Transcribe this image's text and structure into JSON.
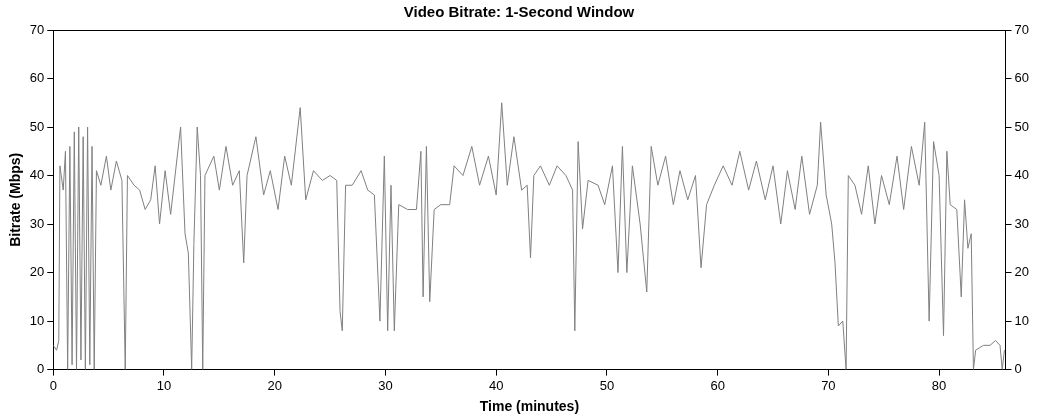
{
  "chart_data": {
    "type": "line",
    "title": "Video Bitrate: 1-Second Window",
    "xlabel": "Time (minutes)",
    "ylabel": "Bitrate (Mbps)",
    "xlim": [
      0,
      86
    ],
    "xticks": [
      0,
      10,
      20,
      30,
      40,
      50,
      60,
      70,
      80
    ],
    "ylim": [
      0,
      70
    ],
    "yticks": [
      0,
      10,
      20,
      30,
      40,
      50,
      60,
      70
    ],
    "y2lim": [
      0,
      70
    ],
    "y2ticks": [
      0,
      10,
      20,
      30,
      40,
      50,
      60,
      70
    ],
    "grid": false,
    "legend": false,
    "marker": "none",
    "line_style": "solid",
    "series": [
      {
        "color": "#808080",
        "x": [
          0,
          0.3,
          0.5,
          0.6,
          0.9,
          1.1,
          1.3,
          1.5,
          1.7,
          1.9,
          2.1,
          2.3,
          2.5,
          2.7,
          2.9,
          3.1,
          3.3,
          3.5,
          3.7,
          3.9,
          4.3,
          4.8,
          5.2,
          5.7,
          6.2,
          6.5,
          6.7,
          7.3,
          7.8,
          8.3,
          8.8,
          9.2,
          9.6,
          10.1,
          10.6,
          11.2,
          11.5,
          11.9,
          12.2,
          12.5,
          12.7,
          13,
          13.3,
          13.5,
          13.7,
          14.5,
          15,
          15.6,
          16.2,
          16.8,
          17.2,
          17.5,
          18.3,
          19,
          19.6,
          20.3,
          20.9,
          21.5,
          22.3,
          22.8,
          23.5,
          24.3,
          25,
          25.6,
          25.9,
          26.1,
          26.4,
          27,
          27.8,
          28.4,
          29,
          29.5,
          29.9,
          30.2,
          30.5,
          30.8,
          31.2,
          32,
          32.8,
          33.2,
          33.4,
          33.7,
          34,
          34.4,
          35,
          35.8,
          36.2,
          37,
          37.8,
          38.5,
          39.3,
          40,
          40.5,
          41,
          41.6,
          42.3,
          42.8,
          43.1,
          43.4,
          44,
          44.8,
          45.5,
          46.3,
          46.9,
          47.1,
          47.4,
          47.8,
          48.3,
          49.2,
          49.8,
          50.5,
          51,
          51.4,
          51.8,
          52.3,
          53,
          53.6,
          54,
          54.6,
          55.3,
          56,
          56.6,
          57.3,
          58,
          58.5,
          59,
          59.7,
          60.5,
          61.3,
          62,
          62.8,
          63.5,
          64.3,
          65,
          65.7,
          66.3,
          67,
          67.6,
          68.3,
          69,
          69.3,
          69.8,
          70.3,
          70.6,
          70.9,
          71.3,
          71.6,
          71.8,
          72.4,
          73,
          73.6,
          74.2,
          74.8,
          75.5,
          76.2,
          76.8,
          77.5,
          78.2,
          78.7,
          79.1,
          79.5,
          80,
          80.4,
          80.7,
          81,
          81.6,
          82,
          82.3,
          82.6,
          82.9,
          83.1,
          83.3,
          84,
          84.6,
          85.1,
          85.5,
          85.7,
          85.9
        ],
        "values": [
          5,
          4,
          6,
          42,
          37,
          45,
          0,
          46,
          1,
          49,
          0,
          50,
          2,
          48,
          0,
          50,
          1,
          46,
          0,
          41,
          38,
          44,
          37,
          43,
          39,
          0,
          40,
          38,
          37,
          33,
          35,
          42,
          30,
          41,
          32,
          44,
          50,
          28,
          24,
          0,
          26,
          50,
          40,
          0,
          40,
          44,
          37,
          46,
          38,
          41,
          22,
          40,
          48,
          36,
          41,
          33,
          44,
          38,
          54,
          35,
          41,
          39,
          40,
          39,
          12,
          8,
          38,
          38,
          41,
          37,
          36,
          10,
          44,
          8,
          38,
          8,
          34,
          33,
          33,
          45,
          15,
          46,
          14,
          33,
          34,
          34,
          42,
          40,
          46,
          38,
          44,
          36,
          55,
          38,
          48,
          37,
          38,
          23,
          40,
          42,
          38,
          42,
          40,
          37,
          8,
          47,
          29,
          39,
          38,
          34,
          42,
          20,
          46,
          20,
          42,
          30,
          16,
          46,
          38,
          44,
          34,
          41,
          35,
          40,
          21,
          34,
          38,
          42,
          38,
          45,
          37,
          43,
          35,
          42,
          30,
          41,
          33,
          44,
          32,
          38,
          51,
          36,
          30,
          22,
          9,
          10,
          0,
          40,
          38,
          32,
          42,
          30,
          40,
          34,
          44,
          33,
          46,
          38,
          51,
          10,
          47,
          40,
          7,
          45,
          34,
          33,
          15,
          35,
          25,
          28,
          0,
          4,
          5,
          5,
          6,
          5,
          0,
          4
        ]
      }
    ]
  }
}
